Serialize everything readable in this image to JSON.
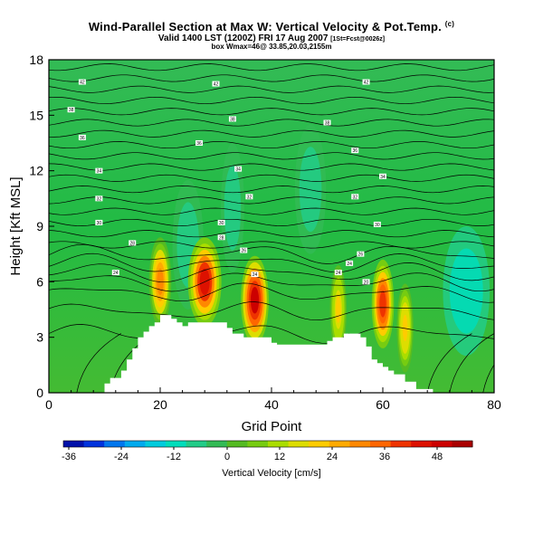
{
  "header": {
    "title": "Wind-Parallel Section at Max W: Vertical Velocity & Pot.Temp.",
    "title_mark": "(c)",
    "valid_line": "Valid 1400 LST (1200Z) FRI 17 Aug 2007",
    "valid_mark": "[1St=Fcst@0026z]",
    "box_line": "box Wmax=46@ 33.85,20.03,2155m"
  },
  "chart_data": {
    "type": "heatmap",
    "xlabel": "Grid Point",
    "ylabel": "Height [Kft MSL]",
    "xlim": [
      0,
      80
    ],
    "ylim": [
      0,
      18
    ],
    "x_ticks": [
      "0",
      "20",
      "40",
      "60",
      "80"
    ],
    "y_ticks": [
      "0",
      "3",
      "6",
      "9",
      "12",
      "15",
      "18"
    ],
    "grid": false,
    "colorbar": {
      "label": "Vertical Velocity [cm/s]",
      "ticks": [
        "-36",
        "-24",
        "-12",
        "0",
        "12",
        "24",
        "36",
        "48"
      ],
      "colors": [
        "#0011aa",
        "#0033dd",
        "#0077ee",
        "#00aaee",
        "#00ccdd",
        "#00ddbb",
        "#22cc88",
        "#33bb55",
        "#55bb22",
        "#77cc11",
        "#aadd00",
        "#dddd00",
        "#ffcc00",
        "#ffaa00",
        "#ff8800",
        "#ff6600",
        "#ee3300",
        "#dd1100",
        "#cc0000",
        "#aa0000"
      ]
    },
    "terrain_top_kft": [
      0,
      0,
      0,
      0,
      0,
      0,
      0,
      0,
      0,
      0,
      0.5,
      0.8,
      0.8,
      1.2,
      1.8,
      2.4,
      3.0,
      3.3,
      3.6,
      3.8,
      4.2,
      4.2,
      4.0,
      3.8,
      3.6,
      3.8,
      3.8,
      3.8,
      3.8,
      3.8,
      3.8,
      3.8,
      3.5,
      3.2,
      3.2,
      3.0,
      3.0,
      3.0,
      3.0,
      3.0,
      2.7,
      2.6,
      2.6,
      2.6,
      2.6,
      2.6,
      2.6,
      2.6,
      2.6,
      2.6,
      2.8,
      3.0,
      3.0,
      3.2,
      3.2,
      3.2,
      3.0,
      2.5,
      1.8,
      1.6,
      1.4,
      1.2,
      1.0,
      1.0,
      0.6,
      0.6,
      0.2,
      0.2,
      0.2,
      0,
      0,
      0,
      0,
      0,
      0,
      0,
      0,
      0,
      0,
      0,
      0
    ],
    "updrafts": [
      {
        "x": 20,
        "y": 6.0,
        "w": 2.0,
        "peak": 28
      },
      {
        "x": 28,
        "y": 6.0,
        "w": 3.0,
        "peak": 42
      },
      {
        "x": 37,
        "y": 5.0,
        "w": 2.5,
        "peak": 46
      },
      {
        "x": 52,
        "y": 4.5,
        "w": 1.5,
        "peak": 18
      },
      {
        "x": 60,
        "y": 4.8,
        "w": 2.0,
        "peak": 40
      },
      {
        "x": 64,
        "y": 3.5,
        "w": 1.5,
        "peak": 20
      }
    ],
    "downdrafts": [
      {
        "x": 25,
        "y": 8.0,
        "w": 2.0,
        "peak": -10
      },
      {
        "x": 33,
        "y": 10.0,
        "w": 1.5,
        "peak": -8
      },
      {
        "x": 47,
        "y": 11.0,
        "w": 2.0,
        "peak": -9
      },
      {
        "x": 75,
        "y": 5.5,
        "w": 3.0,
        "peak": -14
      }
    ],
    "isentropes_kft": [
      3.2,
      4.4,
      5.4,
      6.0,
      6.5,
      7.0,
      7.5,
      8.0,
      8.6,
      9.2,
      9.8,
      10.4,
      11.0,
      11.6,
      12.2,
      12.8,
      13.4,
      14.0,
      14.6,
      15.2,
      15.8,
      16.4,
      17.0,
      17.6
    ],
    "isentrope_labels": [
      {
        "x": 6,
        "y": 16.8,
        "text": "42"
      },
      {
        "x": 30,
        "y": 16.7,
        "text": "42"
      },
      {
        "x": 57,
        "y": 16.8,
        "text": "42"
      },
      {
        "x": 4,
        "y": 15.3,
        "text": "38"
      },
      {
        "x": 33,
        "y": 14.8,
        "text": "38"
      },
      {
        "x": 50,
        "y": 14.6,
        "text": "38"
      },
      {
        "x": 6,
        "y": 13.8,
        "text": "36"
      },
      {
        "x": 27,
        "y": 13.5,
        "text": "36"
      },
      {
        "x": 55,
        "y": 13.1,
        "text": "36"
      },
      {
        "x": 9,
        "y": 12.0,
        "text": "34"
      },
      {
        "x": 34,
        "y": 12.1,
        "text": "34"
      },
      {
        "x": 60,
        "y": 11.7,
        "text": "34"
      },
      {
        "x": 9,
        "y": 10.5,
        "text": "32"
      },
      {
        "x": 36,
        "y": 10.6,
        "text": "32"
      },
      {
        "x": 55,
        "y": 10.6,
        "text": "32"
      },
      {
        "x": 9,
        "y": 9.2,
        "text": "30"
      },
      {
        "x": 31,
        "y": 9.2,
        "text": "30"
      },
      {
        "x": 59,
        "y": 9.1,
        "text": "30"
      },
      {
        "x": 15,
        "y": 8.1,
        "text": "28"
      },
      {
        "x": 31,
        "y": 8.4,
        "text": "28"
      },
      {
        "x": 35,
        "y": 7.7,
        "text": "26"
      },
      {
        "x": 56,
        "y": 7.5,
        "text": "26"
      },
      {
        "x": 12,
        "y": 6.5,
        "text": "24"
      },
      {
        "x": 37,
        "y": 6.4,
        "text": "24"
      },
      {
        "x": 54,
        "y": 7.0,
        "text": "24"
      },
      {
        "x": 52,
        "y": 6.5,
        "text": "24"
      },
      {
        "x": 57,
        "y": 6.0,
        "text": "20"
      }
    ]
  }
}
